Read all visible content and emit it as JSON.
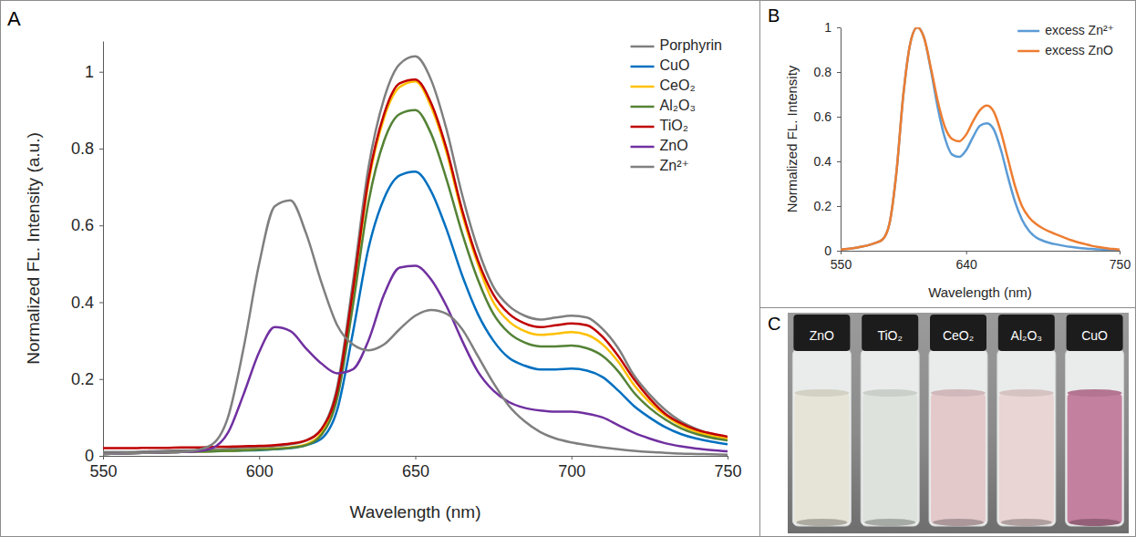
{
  "chart_data": [
    {
      "type": "line",
      "panel_label": "A",
      "x_label": "Wavelength (nm)",
      "y_label": "Normalized FL. Intensity (a.u.)",
      "x": [
        550,
        555,
        560,
        565,
        570,
        575,
        580,
        585,
        590,
        595,
        600,
        605,
        610,
        615,
        620,
        625,
        630,
        635,
        640,
        645,
        650,
        655,
        660,
        665,
        670,
        675,
        680,
        685,
        690,
        695,
        700,
        705,
        710,
        715,
        720,
        725,
        730,
        735,
        740,
        745,
        750
      ],
      "xlim": [
        550,
        750
      ],
      "xticks": [
        550,
        600,
        650,
        700,
        750
      ],
      "ylim": [
        0,
        1.08
      ],
      "yticks": [
        0,
        0.2,
        0.4,
        0.6,
        0.8,
        1
      ],
      "legend": "upper right",
      "series": [
        {
          "name": "Porphyrin",
          "color": "#7f7f7f",
          "values": [
            0.01,
            0.01,
            0.01,
            0.012,
            0.013,
            0.014,
            0.015,
            0.016,
            0.018,
            0.02,
            0.022,
            0.025,
            0.03,
            0.04,
            0.07,
            0.18,
            0.45,
            0.75,
            0.93,
            1.02,
            1.04,
            0.98,
            0.85,
            0.68,
            0.54,
            0.44,
            0.39,
            0.365,
            0.355,
            0.36,
            0.365,
            0.36,
            0.33,
            0.28,
            0.21,
            0.16,
            0.12,
            0.09,
            0.07,
            0.055,
            0.045
          ]
        },
        {
          "name": "CuO",
          "color": "#0070c0",
          "values": [
            0.005,
            0.006,
            0.007,
            0.008,
            0.009,
            0.01,
            0.011,
            0.012,
            0.013,
            0.014,
            0.015,
            0.017,
            0.02,
            0.028,
            0.045,
            0.12,
            0.32,
            0.54,
            0.67,
            0.73,
            0.74,
            0.69,
            0.59,
            0.47,
            0.37,
            0.3,
            0.255,
            0.235,
            0.225,
            0.225,
            0.227,
            0.222,
            0.205,
            0.17,
            0.13,
            0.1,
            0.075,
            0.057,
            0.045,
            0.037,
            0.03
          ]
        },
        {
          "name": "CeO₂",
          "color": "#ffc000",
          "values": [
            0.005,
            0.006,
            0.007,
            0.008,
            0.009,
            0.01,
            0.011,
            0.012,
            0.013,
            0.015,
            0.017,
            0.019,
            0.022,
            0.03,
            0.06,
            0.16,
            0.42,
            0.71,
            0.88,
            0.96,
            0.975,
            0.91,
            0.79,
            0.63,
            0.5,
            0.4,
            0.35,
            0.325,
            0.315,
            0.318,
            0.322,
            0.315,
            0.29,
            0.245,
            0.185,
            0.14,
            0.105,
            0.08,
            0.063,
            0.052,
            0.045
          ]
        },
        {
          "name": "Al₂O₃",
          "color": "#548235",
          "values": [
            0.005,
            0.006,
            0.007,
            0.008,
            0.009,
            0.01,
            0.011,
            0.012,
            0.013,
            0.014,
            0.016,
            0.018,
            0.021,
            0.028,
            0.055,
            0.15,
            0.39,
            0.66,
            0.82,
            0.89,
            0.9,
            0.84,
            0.72,
            0.58,
            0.46,
            0.37,
            0.32,
            0.295,
            0.285,
            0.285,
            0.287,
            0.28,
            0.26,
            0.22,
            0.165,
            0.125,
            0.095,
            0.072,
            0.057,
            0.047,
            0.04
          ]
        },
        {
          "name": "TiO₂",
          "color": "#c00000",
          "values": [
            0.02,
            0.02,
            0.02,
            0.021,
            0.021,
            0.022,
            0.022,
            0.023,
            0.024,
            0.025,
            0.026,
            0.028,
            0.032,
            0.04,
            0.07,
            0.17,
            0.43,
            0.72,
            0.89,
            0.97,
            0.98,
            0.92,
            0.8,
            0.64,
            0.51,
            0.42,
            0.37,
            0.345,
            0.335,
            0.34,
            0.345,
            0.34,
            0.31,
            0.26,
            0.2,
            0.15,
            0.11,
            0.085,
            0.068,
            0.058,
            0.05
          ]
        },
        {
          "name": "ZnO",
          "color": "#7030a0",
          "values": [
            0.005,
            0.006,
            0.007,
            0.008,
            0.009,
            0.01,
            0.012,
            0.02,
            0.06,
            0.16,
            0.27,
            0.335,
            0.325,
            0.28,
            0.24,
            0.215,
            0.225,
            0.3,
            0.42,
            0.49,
            0.495,
            0.46,
            0.39,
            0.3,
            0.22,
            0.17,
            0.14,
            0.125,
            0.118,
            0.115,
            0.115,
            0.11,
            0.1,
            0.08,
            0.06,
            0.045,
            0.033,
            0.025,
            0.019,
            0.015,
            0.012
          ]
        },
        {
          "name": "Zn²⁺",
          "color": "#7f7f7f",
          "values": [
            0.005,
            0.006,
            0.007,
            0.008,
            0.009,
            0.01,
            0.015,
            0.03,
            0.1,
            0.28,
            0.5,
            0.65,
            0.665,
            0.58,
            0.45,
            0.34,
            0.29,
            0.275,
            0.29,
            0.33,
            0.365,
            0.38,
            0.37,
            0.33,
            0.26,
            0.19,
            0.13,
            0.09,
            0.062,
            0.045,
            0.035,
            0.028,
            0.022,
            0.017,
            0.013,
            0.01,
            0.008,
            0.006,
            0.005,
            0.004,
            0.003
          ]
        }
      ]
    },
    {
      "type": "line",
      "panel_label": "B",
      "x_label": "Wavelength (nm)",
      "y_label": "Normalized FL. Intensity",
      "x": [
        550,
        555,
        560,
        565,
        570,
        575,
        580,
        585,
        590,
        595,
        600,
        605,
        610,
        615,
        620,
        625,
        630,
        635,
        640,
        645,
        650,
        655,
        660,
        665,
        670,
        675,
        680,
        685,
        690,
        695,
        700,
        705,
        710,
        715,
        720,
        725,
        730,
        735,
        740,
        745,
        750
      ],
      "xlim": [
        550,
        750
      ],
      "xticks": [
        550,
        640,
        750
      ],
      "ylim": [
        0,
        1
      ],
      "yticks": [
        0,
        0.2,
        0.4,
        0.6,
        0.8,
        1
      ],
      "legend": "upper right",
      "series": [
        {
          "name": "excess Zn²⁺",
          "color": "#5b9bd5",
          "values": [
            0.005,
            0.008,
            0.012,
            0.018,
            0.025,
            0.035,
            0.05,
            0.12,
            0.35,
            0.7,
            0.93,
            1.0,
            0.95,
            0.8,
            0.63,
            0.5,
            0.43,
            0.42,
            0.45,
            0.51,
            0.56,
            0.57,
            0.54,
            0.45,
            0.33,
            0.22,
            0.14,
            0.09,
            0.06,
            0.045,
            0.035,
            0.028,
            0.022,
            0.017,
            0.013,
            0.01,
            0.008,
            0.006,
            0.005,
            0.004,
            0.003
          ]
        },
        {
          "name": "excess ZnO",
          "color": "#ed7d31",
          "values": [
            0.005,
            0.008,
            0.012,
            0.018,
            0.025,
            0.035,
            0.05,
            0.12,
            0.35,
            0.7,
            0.93,
            1.0,
            0.95,
            0.81,
            0.66,
            0.55,
            0.5,
            0.49,
            0.52,
            0.58,
            0.63,
            0.65,
            0.62,
            0.53,
            0.41,
            0.29,
            0.2,
            0.15,
            0.12,
            0.1,
            0.085,
            0.072,
            0.06,
            0.048,
            0.038,
            0.03,
            0.022,
            0.016,
            0.012,
            0.008,
            0.005
          ]
        }
      ]
    }
  ],
  "photo": {
    "panel_label": "C",
    "vials": [
      {
        "label": "ZnO",
        "color": "#e6e4d6"
      },
      {
        "label": "TiO₂",
        "color": "#dde2dc"
      },
      {
        "label": "CeO₂",
        "color": "#e4c9cb"
      },
      {
        "label": "Al₂O₃",
        "color": "#e9d5d4"
      },
      {
        "label": "CuO",
        "color": "#c4809f"
      }
    ]
  }
}
